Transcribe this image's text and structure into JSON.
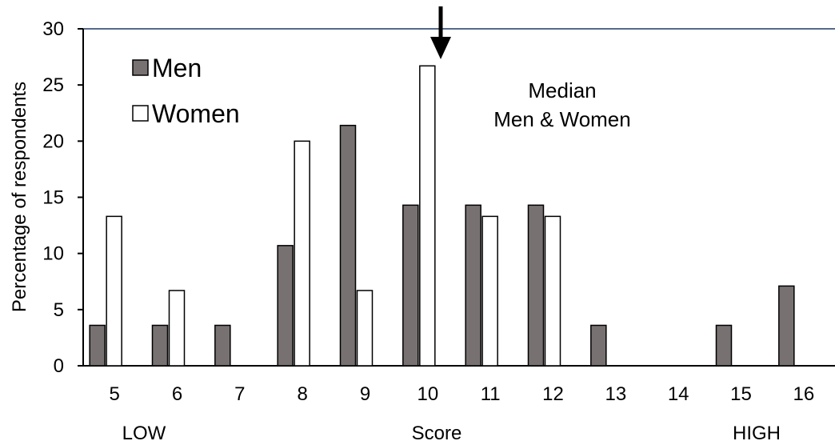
{
  "chart_data": {
    "type": "bar",
    "categories": [
      "5",
      "6",
      "7",
      "8",
      "9",
      "10",
      "11",
      "12",
      "13",
      "14",
      "15",
      "16"
    ],
    "series": [
      {
        "name": "Men",
        "values": [
          3.6,
          3.6,
          3.6,
          10.7,
          21.4,
          14.3,
          14.3,
          14.3,
          3.6,
          0,
          3.6,
          7.1
        ],
        "color": "#777171"
      },
      {
        "name": "Women",
        "values": [
          13.3,
          6.7,
          0,
          20.0,
          6.7,
          26.7,
          13.3,
          13.3,
          0,
          0,
          0,
          0
        ],
        "color": "#ffffff"
      }
    ],
    "xlabel": "Score",
    "xlabel_low": "LOW",
    "xlabel_high": "HIGH",
    "ylabel": "Percentage of respondents",
    "ylim": [
      0,
      30
    ],
    "yticks": [
      "0",
      "5",
      "10",
      "15",
      "20",
      "25",
      "30"
    ],
    "grid": false,
    "legend_position": "top-left",
    "annotation": {
      "line1": "Median",
      "line2": "Men & Women",
      "arrow_category": "10"
    }
  }
}
